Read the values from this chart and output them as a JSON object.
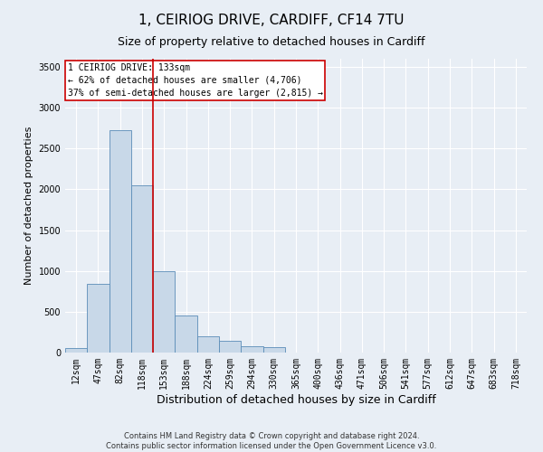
{
  "title1": "1, CEIRIOG DRIVE, CARDIFF, CF14 7TU",
  "title2": "Size of property relative to detached houses in Cardiff",
  "xlabel": "Distribution of detached houses by size in Cardiff",
  "ylabel": "Number of detached properties",
  "bar_labels": [
    "12sqm",
    "47sqm",
    "82sqm",
    "118sqm",
    "153sqm",
    "188sqm",
    "224sqm",
    "259sqm",
    "294sqm",
    "330sqm",
    "365sqm",
    "400sqm",
    "436sqm",
    "471sqm",
    "506sqm",
    "541sqm",
    "577sqm",
    "612sqm",
    "647sqm",
    "683sqm",
    "718sqm"
  ],
  "bar_values": [
    60,
    840,
    2720,
    2050,
    1000,
    450,
    200,
    140,
    80,
    70,
    0,
    0,
    0,
    0,
    0,
    0,
    0,
    0,
    0,
    0,
    0
  ],
  "bar_color": "#c8d8e8",
  "bar_edge_color": "#5b8db8",
  "vline_x": 3.5,
  "vline_color": "#cc0000",
  "annotation_text": "1 CEIRIOG DRIVE: 133sqm\n← 62% of detached houses are smaller (4,706)\n37% of semi-detached houses are larger (2,815) →",
  "annotation_box_color": "#cc0000",
  "ylim": [
    0,
    3600
  ],
  "yticks": [
    0,
    500,
    1000,
    1500,
    2000,
    2500,
    3000,
    3500
  ],
  "bg_color": "#e8eef5",
  "plot_bg_color": "#e8eef5",
  "footer": "Contains HM Land Registry data © Crown copyright and database right 2024.\nContains public sector information licensed under the Open Government Licence v3.0.",
  "title1_fontsize": 11,
  "title2_fontsize": 9,
  "xlabel_fontsize": 9,
  "ylabel_fontsize": 8,
  "tick_fontsize": 7,
  "footer_fontsize": 6
}
